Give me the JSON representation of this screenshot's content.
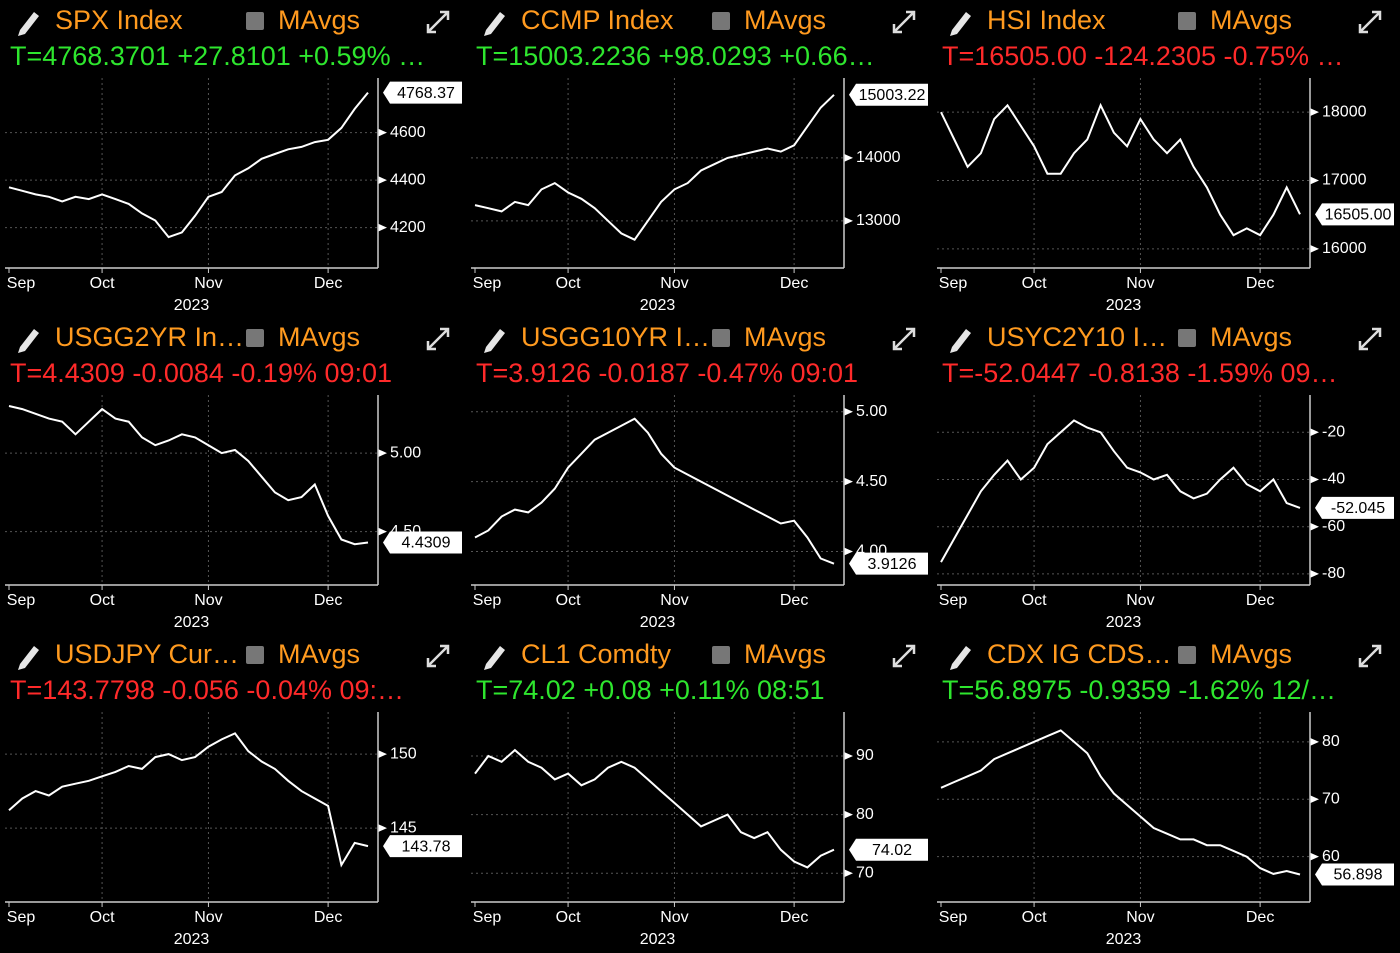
{
  "chart_data": [
    {
      "type": "line",
      "title": "SPX Index",
      "toggle_label": "MAvgs",
      "quote": "T=4768.3701 +27.8101 +0.59% …",
      "quote_color": "#2ee62e",
      "price_label": "4768.37",
      "xlabel": "2023",
      "categories": [
        "Sep",
        null,
        null,
        null,
        null,
        null,
        null,
        "Oct",
        null,
        null,
        null,
        null,
        null,
        null,
        null,
        "Nov",
        null,
        null,
        null,
        null,
        null,
        null,
        null,
        null,
        "Dec",
        null,
        null,
        null
      ],
      "values": [
        4370,
        4355,
        4340,
        4330,
        4310,
        4330,
        4320,
        4340,
        4320,
        4300,
        4260,
        4230,
        4160,
        4180,
        4250,
        4330,
        4350,
        4420,
        4450,
        4490,
        4510,
        4530,
        4540,
        4560,
        4570,
        4620,
        4700,
        4768.3701
      ],
      "color": "#ffffff",
      "ylim": [
        4030,
        4830
      ],
      "yticks": [
        4200,
        4400,
        4600
      ],
      "grid": true
    },
    {
      "type": "line",
      "title": "CCMP Index",
      "toggle_label": "MAvgs",
      "quote": "T=15003.2236 +98.0293 +0.66…",
      "quote_color": "#2ee62e",
      "price_label": "15003.22",
      "xlabel": "2023",
      "categories": [
        "Sep",
        null,
        null,
        null,
        null,
        null,
        null,
        "Oct",
        null,
        null,
        null,
        null,
        null,
        null,
        null,
        "Nov",
        null,
        null,
        null,
        null,
        null,
        null,
        null,
        null,
        "Dec",
        null,
        null,
        null
      ],
      "values": [
        13250,
        13200,
        13150,
        13300,
        13250,
        13500,
        13600,
        13450,
        13350,
        13200,
        13000,
        12800,
        12700,
        13000,
        13300,
        13500,
        13600,
        13800,
        13900,
        14000,
        14050,
        14100,
        14150,
        14100,
        14200,
        14500,
        14800,
        15003.2236
      ],
      "color": "#ffffff",
      "ylim": [
        12250,
        15270
      ],
      "yticks": [
        13000,
        14000
      ],
      "grid": true
    },
    {
      "type": "line",
      "title": "HSI Index",
      "toggle_label": "MAvgs",
      "quote": "T=16505.00 -124.2305 -0.75% …",
      "quote_color": "#ff2a2a",
      "price_label": "16505.00",
      "xlabel": "2023",
      "categories": [
        "Sep",
        null,
        null,
        null,
        null,
        null,
        null,
        "Oct",
        null,
        null,
        null,
        null,
        null,
        null,
        null,
        "Nov",
        null,
        null,
        null,
        null,
        null,
        null,
        null,
        null,
        "Dec",
        null,
        null,
        null
      ],
      "values": [
        18000,
        17600,
        17200,
        17400,
        17900,
        18100,
        17800,
        17500,
        17100,
        17100,
        17400,
        17600,
        18100,
        17700,
        17500,
        17900,
        17600,
        17400,
        17600,
        17200,
        16900,
        16500,
        16200,
        16300,
        16200,
        16500,
        16900,
        16505
      ],
      "color": "#ffffff",
      "ylim": [
        15720,
        18500
      ],
      "yticks": [
        16000,
        17000,
        18000
      ],
      "grid": true
    },
    {
      "type": "line",
      "title": "USGG2YR In…",
      "toggle_label": "MAvgs",
      "quote": "T=4.4309 -0.0084 -0.19% 09:01",
      "quote_color": "#ff2a2a",
      "price_label": "4.4309",
      "xlabel": "2023",
      "categories": [
        "Sep",
        null,
        null,
        null,
        null,
        null,
        null,
        "Oct",
        null,
        null,
        null,
        null,
        null,
        null,
        null,
        "Nov",
        null,
        null,
        null,
        null,
        null,
        null,
        null,
        null,
        "Dec",
        null,
        null,
        null
      ],
      "values": [
        5.3,
        5.28,
        5.25,
        5.22,
        5.2,
        5.12,
        5.2,
        5.28,
        5.22,
        5.2,
        5.1,
        5.05,
        5.08,
        5.12,
        5.1,
        5.05,
        5,
        5.02,
        4.95,
        4.85,
        4.75,
        4.7,
        4.72,
        4.8,
        4.6,
        4.45,
        4.42,
        4.4309
      ],
      "color": "#ffffff",
      "ylim": [
        4.16,
        5.37
      ],
      "yticks": [
        {
          "value": 5,
          "label": "5.00"
        },
        {
          "value": 4.5,
          "label": "4.50"
        }
      ],
      "grid": true
    },
    {
      "type": "line",
      "title": "USGG10YR I…",
      "toggle_label": "MAvgs",
      "quote": "T=3.9126 -0.0187 -0.47% 09:01",
      "quote_color": "#ff2a2a",
      "price_label": "3.9126",
      "xlabel": "2023",
      "categories": [
        "Sep",
        null,
        null,
        null,
        null,
        null,
        null,
        "Oct",
        null,
        null,
        null,
        null,
        null,
        null,
        null,
        "Nov",
        null,
        null,
        null,
        null,
        null,
        null,
        null,
        null,
        "Dec",
        null,
        null,
        null
      ],
      "values": [
        4.1,
        4.15,
        4.25,
        4.3,
        4.28,
        4.35,
        4.45,
        4.6,
        4.7,
        4.8,
        4.85,
        4.9,
        4.95,
        4.85,
        4.7,
        4.6,
        4.55,
        4.5,
        4.45,
        4.4,
        4.35,
        4.3,
        4.25,
        4.2,
        4.22,
        4.1,
        3.95,
        3.9126
      ],
      "color": "#ffffff",
      "ylim": [
        3.76,
        5.12
      ],
      "yticks": [
        {
          "value": 5,
          "label": "5.00"
        },
        {
          "value": 4.5,
          "label": "4.50"
        },
        {
          "value": 4,
          "label": "4.00"
        }
      ],
      "grid": true
    },
    {
      "type": "line",
      "title": "USYC2Y10 I…",
      "toggle_label": "MAvgs",
      "quote": "T=-52.0447 -0.8138 -1.59% 09…",
      "quote_color": "#ff2a2a",
      "price_label": "-52.045",
      "xlabel": "2023",
      "categories": [
        "Sep",
        null,
        null,
        null,
        null,
        null,
        null,
        "Oct",
        null,
        null,
        null,
        null,
        null,
        null,
        null,
        "Nov",
        null,
        null,
        null,
        null,
        null,
        null,
        null,
        null,
        "Dec",
        null,
        null,
        null
      ],
      "values": [
        -75,
        -65,
        -55,
        -45,
        -38,
        -32,
        -40,
        -35,
        -25,
        -20,
        -15,
        -18,
        -20,
        -28,
        -35,
        -37,
        -40,
        -38,
        -45,
        -48,
        -46,
        -40,
        -35,
        -42,
        -45,
        -40,
        -50,
        -52.0447
      ],
      "color": "#ffffff",
      "ylim": [
        -84.7,
        -4.2
      ],
      "yticks": [
        -20,
        -40,
        -60,
        -80
      ],
      "grid": true
    },
    {
      "type": "line",
      "title": "USDJPY Cur…",
      "toggle_label": "MAvgs",
      "quote": "T=143.7798 -0.056 -0.04% 09:…",
      "quote_color": "#ff2a2a",
      "price_label": "143.78",
      "xlabel": "2023",
      "categories": [
        "Sep",
        null,
        null,
        null,
        null,
        null,
        null,
        "Oct",
        null,
        null,
        null,
        null,
        null,
        null,
        null,
        "Nov",
        null,
        null,
        null,
        null,
        null,
        null,
        null,
        null,
        "Dec",
        null,
        null,
        null
      ],
      "values": [
        146.2,
        147,
        147.5,
        147.2,
        147.8,
        148,
        148.2,
        148.5,
        148.8,
        149.2,
        149,
        149.8,
        150,
        149.6,
        149.8,
        150.5,
        151,
        151.4,
        150.2,
        149.5,
        149,
        148.2,
        147.5,
        147,
        146.5,
        142.5,
        144,
        143.7798
      ],
      "color": "#ffffff",
      "ylim": [
        140,
        152.85
      ],
      "yticks": [
        150,
        145
      ],
      "grid": true
    },
    {
      "type": "line",
      "title": "CL1 Comdty",
      "toggle_label": "MAvgs",
      "quote": "T=74.02 +0.08 +0.11% 08:51",
      "quote_color": "#2ee62e",
      "price_label": "74.02",
      "xlabel": "2023",
      "categories": [
        "Sep",
        null,
        null,
        null,
        null,
        null,
        null,
        "Oct",
        null,
        null,
        null,
        null,
        null,
        null,
        null,
        "Nov",
        null,
        null,
        null,
        null,
        null,
        null,
        null,
        null,
        "Dec",
        null,
        null,
        null
      ],
      "values": [
        87,
        90,
        89,
        91,
        89,
        88,
        86,
        87,
        85,
        86,
        88,
        89,
        88,
        86,
        84,
        82,
        80,
        78,
        79,
        80,
        77,
        76,
        77,
        74,
        72,
        71,
        73,
        74.02
      ],
      "color": "#ffffff",
      "ylim": [
        65.1,
        97.5
      ],
      "yticks": [
        90,
        80,
        70
      ],
      "grid": true
    },
    {
      "type": "line",
      "title": "CDX IG CDS…",
      "toggle_label": "MAvgs",
      "quote": "T=56.8975 -0.9359 -1.62% 12/…",
      "quote_color": "#2ee62e",
      "price_label": "56.898",
      "xlabel": "2023",
      "categories": [
        "Sep",
        null,
        null,
        null,
        null,
        null,
        null,
        "Oct",
        null,
        null,
        null,
        null,
        null,
        null,
        null,
        "Nov",
        null,
        null,
        null,
        null,
        null,
        null,
        null,
        null,
        "Dec",
        null,
        null,
        null
      ],
      "values": [
        72,
        73,
        74,
        75,
        77,
        78,
        79,
        80,
        81,
        82,
        80,
        78,
        74,
        71,
        69,
        67,
        65,
        64,
        63,
        63,
        62,
        62,
        61,
        60,
        58,
        57,
        57.5,
        56.8975
      ],
      "color": "#ffffff",
      "ylim": [
        52.1,
        85.2
      ],
      "yticks": [
        80,
        70,
        60
      ],
      "grid": true
    }
  ]
}
